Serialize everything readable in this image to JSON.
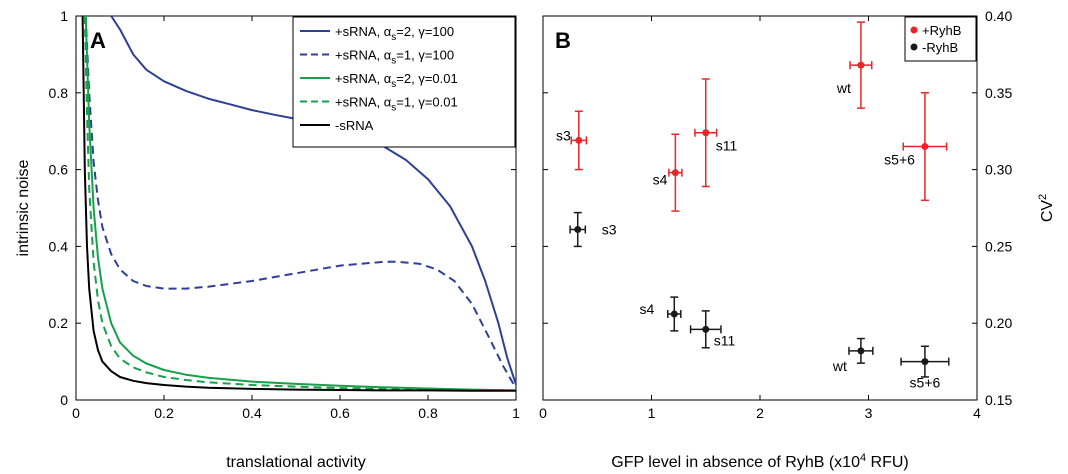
{
  "chart_data": [
    {
      "panel": "A",
      "type": "line",
      "xlabel": "translational activity",
      "ylabel": "intrinsic noise",
      "xlim": [
        0,
        1
      ],
      "ylim": [
        0,
        1
      ],
      "x_ticks": [
        "0",
        "0.2",
        "0.4",
        "0.6",
        "0.8",
        "1"
      ],
      "y_ticks": [
        "0",
        "0.2",
        "0.4",
        "0.6",
        "0.8",
        "1"
      ],
      "legend_position": "top-right",
      "series": [
        {
          "name": "+sRNA, αs=2, γ=100",
          "name_main": "+sRNA, α",
          "name_sub": "s",
          "name_rest": "=2, γ=100",
          "color": "#2e3f98",
          "dash": "solid",
          "x": [
            0.08,
            0.1,
            0.13,
            0.16,
            0.2,
            0.25,
            0.3,
            0.35,
            0.4,
            0.45,
            0.5,
            0.55,
            0.6,
            0.65,
            0.7,
            0.75,
            0.8,
            0.85,
            0.9,
            0.93,
            0.96,
            0.98,
            1.0
          ],
          "y": [
            1.0,
            0.965,
            0.9,
            0.86,
            0.83,
            0.805,
            0.785,
            0.77,
            0.755,
            0.743,
            0.732,
            0.72,
            0.705,
            0.685,
            0.66,
            0.625,
            0.575,
            0.505,
            0.4,
            0.31,
            0.2,
            0.11,
            0.04
          ]
        },
        {
          "name": "+sRNA, αs=1, γ=100",
          "name_main": "+sRNA, α",
          "name_sub": "s",
          "name_rest": "=1, γ=100",
          "color": "#2e3f98",
          "dash": "dashed",
          "x": [
            0.022,
            0.03,
            0.04,
            0.05,
            0.06,
            0.08,
            0.1,
            0.13,
            0.16,
            0.2,
            0.25,
            0.3,
            0.4,
            0.5,
            0.6,
            0.7,
            0.73,
            0.78,
            0.82,
            0.86,
            0.9,
            0.94,
            0.97,
            1.0
          ],
          "y": [
            1.0,
            0.8,
            0.62,
            0.52,
            0.45,
            0.38,
            0.34,
            0.31,
            0.297,
            0.29,
            0.29,
            0.295,
            0.31,
            0.33,
            0.35,
            0.36,
            0.36,
            0.355,
            0.34,
            0.31,
            0.25,
            0.16,
            0.09,
            0.03
          ]
        },
        {
          "name": "+sRNA, αs=2, γ=0.01",
          "name_main": "+sRNA, α",
          "name_sub": "s",
          "name_rest": "=2, γ=0.01",
          "color": "#17a04a",
          "dash": "solid",
          "x": [
            0.022,
            0.03,
            0.04,
            0.05,
            0.06,
            0.08,
            0.1,
            0.13,
            0.16,
            0.2,
            0.25,
            0.3,
            0.4,
            0.5,
            0.6,
            0.7,
            0.8,
            0.9,
            1.0
          ],
          "y": [
            1.0,
            0.72,
            0.5,
            0.37,
            0.29,
            0.2,
            0.15,
            0.115,
            0.095,
            0.078,
            0.066,
            0.058,
            0.048,
            0.042,
            0.037,
            0.033,
            0.03,
            0.027,
            0.025
          ]
        },
        {
          "name": "+sRNA, αs=1, γ=0.01",
          "name_main": "+sRNA, α",
          "name_sub": "s",
          "name_rest": "=1, γ=0.01",
          "color": "#17a04a",
          "dash": "dashed",
          "x": [
            0.02,
            0.025,
            0.03,
            0.04,
            0.05,
            0.06,
            0.08,
            0.1,
            0.13,
            0.16,
            0.2,
            0.25,
            0.3,
            0.4,
            0.5,
            0.6,
            0.7,
            0.8,
            0.9,
            1.0
          ],
          "y": [
            1.0,
            0.75,
            0.55,
            0.36,
            0.26,
            0.2,
            0.14,
            0.108,
            0.085,
            0.072,
            0.06,
            0.052,
            0.046,
            0.039,
            0.035,
            0.031,
            0.029,
            0.027,
            0.026,
            0.025
          ]
        },
        {
          "name": "-sRNA",
          "name_main": "-sRNA",
          "name_sub": "",
          "name_rest": "",
          "color": "#000000",
          "dash": "solid",
          "x": [
            0.015,
            0.02,
            0.025,
            0.03,
            0.04,
            0.05,
            0.06,
            0.08,
            0.1,
            0.13,
            0.16,
            0.2,
            0.25,
            0.3,
            0.4,
            0.5,
            0.6,
            0.7,
            0.8,
            0.9,
            1.0
          ],
          "y": [
            1.0,
            0.6,
            0.4,
            0.29,
            0.18,
            0.13,
            0.1,
            0.075,
            0.06,
            0.05,
            0.044,
            0.039,
            0.035,
            0.032,
            0.029,
            0.027,
            0.026,
            0.025,
            0.025,
            0.024,
            0.024
          ]
        }
      ]
    },
    {
      "panel": "B",
      "type": "scatter",
      "xlabel_main": "GFP level in absence of RyhB (x10",
      "xlabel_sup": "4",
      "xlabel_rest": " RFU)",
      "ylabel_main": "CV",
      "ylabel_sup": "2",
      "xlim": [
        0,
        4
      ],
      "ylim": [
        0.15,
        0.4
      ],
      "x_ticks": [
        "0",
        "1",
        "2",
        "3",
        "4"
      ],
      "y_ticks": [
        "0.15",
        "0.20",
        "0.25",
        "0.30",
        "0.35",
        "0.40"
      ],
      "legend_position": "top-right",
      "series": [
        {
          "name": "+RyhB",
          "color": "#e8262a",
          "points": [
            {
              "label": "s3",
              "x": 0.33,
              "y": 0.319,
              "xerr": 0.07,
              "yerr": 0.019
            },
            {
              "label": "s4",
              "x": 1.22,
              "y": 0.298,
              "xerr": 0.06,
              "yerr": 0.025
            },
            {
              "label": "s11",
              "x": 1.5,
              "y": 0.324,
              "xerr": 0.1,
              "yerr": 0.035
            },
            {
              "label": "wt",
              "x": 2.93,
              "y": 0.368,
              "xerr": 0.1,
              "yerr": 0.028
            },
            {
              "label": "s5+6",
              "x": 3.52,
              "y": 0.315,
              "xerr": 0.2,
              "yerr": 0.035
            }
          ]
        },
        {
          "name": "-RyhB",
          "color": "#1a1a1a",
          "points": [
            {
              "label": "s3",
              "x": 0.32,
              "y": 0.261,
              "xerr": 0.07,
              "yerr": 0.011
            },
            {
              "label": "s4",
              "x": 1.21,
              "y": 0.206,
              "xerr": 0.06,
              "yerr": 0.011
            },
            {
              "label": "s11",
              "x": 1.5,
              "y": 0.196,
              "xerr": 0.14,
              "yerr": 0.012
            },
            {
              "label": "wt",
              "x": 2.93,
              "y": 0.182,
              "xerr": 0.11,
              "yerr": 0.008
            },
            {
              "label": "s5+6",
              "x": 3.52,
              "y": 0.175,
              "xerr": 0.22,
              "yerr": 0.01
            }
          ]
        }
      ]
    }
  ]
}
